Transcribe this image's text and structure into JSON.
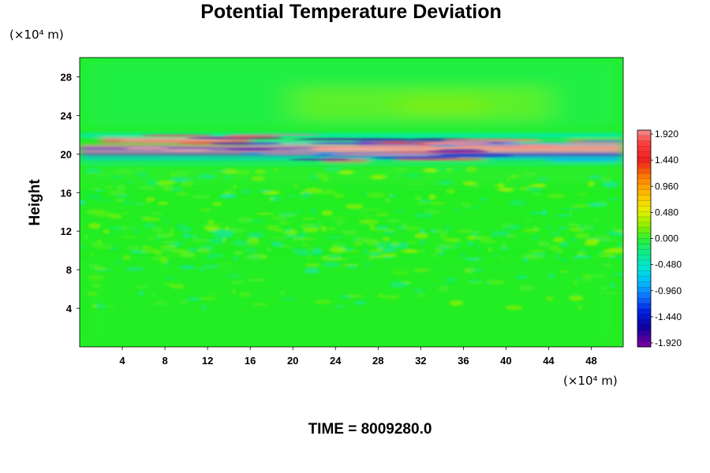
{
  "chart_data": {
    "type": "heatmap",
    "title": "Potential Temperature Deviation",
    "ylabel": "Height",
    "xlabel": "",
    "x_unit": "(×10⁴ m)",
    "y_unit": "(×10⁴ m)",
    "xlim": [
      0,
      51
    ],
    "ylim": [
      0,
      30
    ],
    "x_ticks": [
      4,
      8,
      12,
      16,
      20,
      24,
      28,
      32,
      36,
      40,
      44,
      48
    ],
    "y_ticks": [
      4,
      8,
      12,
      16,
      20,
      24,
      28
    ],
    "colorbar": {
      "min": -1.92,
      "max": 1.92,
      "ticks": [
        "1.920",
        "1.440",
        "0.960",
        "0.480",
        "0.000",
        "-0.480",
        "-0.960",
        "-1.440",
        "-1.920"
      ]
    },
    "field_description": "Mostly near-zero (green) field with a band of strong positive (pink/red) and negative (blue/purple) deviations between heights 19 and 22, weak positive anomalies near 23–26 above x 24–40, and small speckled perturbations around heights 9–18.",
    "grid": false,
    "legend": "colorbar-right"
  },
  "footer": {
    "time_label": "TIME = 8009280.0"
  }
}
